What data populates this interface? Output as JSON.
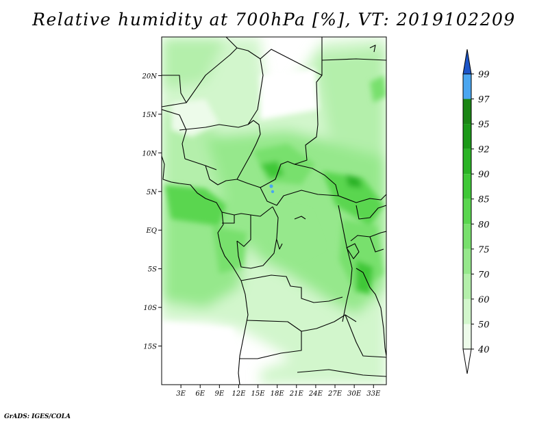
{
  "title": "Relative humidity at 700hPa [%], VT: 2019102209",
  "footer": "GrADS: IGES/COLA",
  "map": {
    "lon_range": [
      0,
      35
    ],
    "lat_range": [
      -20,
      25
    ],
    "x_ticks": [
      "3E",
      "6E",
      "9E",
      "12E",
      "15E",
      "18E",
      "21E",
      "24E",
      "27E",
      "30E",
      "33E"
    ],
    "x_tick_values": [
      3,
      6,
      9,
      12,
      15,
      18,
      21,
      24,
      27,
      30,
      33
    ],
    "y_ticks": [
      "20N",
      "15N",
      "10N",
      "5N",
      "EQ",
      "5S",
      "10S",
      "15S"
    ],
    "y_tick_values": [
      20,
      15,
      10,
      5,
      0,
      -5,
      -10,
      -15
    ]
  },
  "colorbar": {
    "levels": [
      "40",
      "50",
      "60",
      "70",
      "75",
      "80",
      "85",
      "90",
      "92",
      "95",
      "97",
      "99"
    ],
    "colors": [
      "#ffffff",
      "#edfbea",
      "#d2f6cc",
      "#b4efab",
      "#96e88c",
      "#78e06d",
      "#5ad64f",
      "#3fc837",
      "#2ab325",
      "#1b9918",
      "#1a8514",
      "#4aa6f0",
      "#2a7fe0",
      "#1c55c8"
    ]
  }
}
